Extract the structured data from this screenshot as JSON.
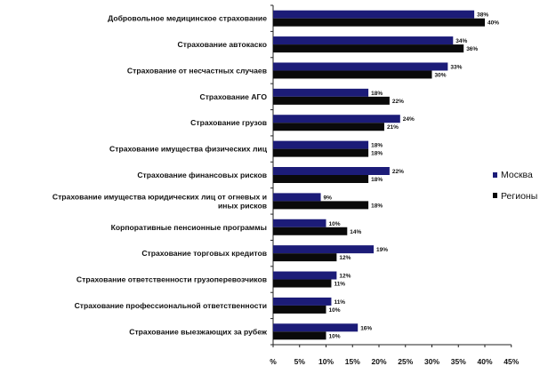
{
  "chart_data": {
    "type": "bar",
    "orientation": "horizontal",
    "categories": [
      [
        "Добровольное медицинское страхование"
      ],
      [
        "Страхование автокаско"
      ],
      [
        "Страхование от несчастных случаев"
      ],
      [
        "Страхование АГО"
      ],
      [
        "Страхование грузов"
      ],
      [
        "Страхование имущества физических лиц"
      ],
      [
        "Страхование финансовых рисков"
      ],
      [
        "Страхование имущества юридических лиц от огневых и",
        "иных рисков"
      ],
      [
        "Корпоративные пенсионные программы"
      ],
      [
        "Страхование торговых кредитов"
      ],
      [
        "Страхование ответственности грузоперевозчиков"
      ],
      [
        "Страхование профессиональной ответственности"
      ],
      [
        "Страхование выезжающих за рубеж"
      ]
    ],
    "series": [
      {
        "name": "Москва",
        "color": "#1c1c78",
        "values": [
          38,
          34,
          33,
          18,
          24,
          18,
          22,
          9,
          10,
          19,
          12,
          11,
          16
        ],
        "labels": [
          "38%",
          "34%",
          "33%",
          "18%",
          "24%",
          "18%",
          "22%",
          "9%",
          "10%",
          "19%",
          "12%",
          "11%",
          "16%"
        ]
      },
      {
        "name": "Регионы",
        "color": "#0a0a0a",
        "values": [
          40,
          36,
          30,
          22,
          21,
          18,
          18,
          18,
          14,
          12,
          11,
          10,
          10
        ],
        "labels": [
          "40%",
          "36%",
          "30%",
          "22%",
          "21%",
          "18%",
          "18%",
          "18%",
          "14%",
          "12%",
          "11%",
          "10%",
          "10%"
        ]
      }
    ],
    "xlim": [
      0,
      45
    ],
    "xticks": [
      0,
      5,
      10,
      15,
      20,
      25,
      30,
      35,
      40,
      45
    ],
    "xtick_labels": [
      "%",
      "5%",
      "10%",
      "15%",
      "20%",
      "25%",
      "30%",
      "35%",
      "40%",
      "45%"
    ],
    "grid": false,
    "legend_position": "right"
  }
}
